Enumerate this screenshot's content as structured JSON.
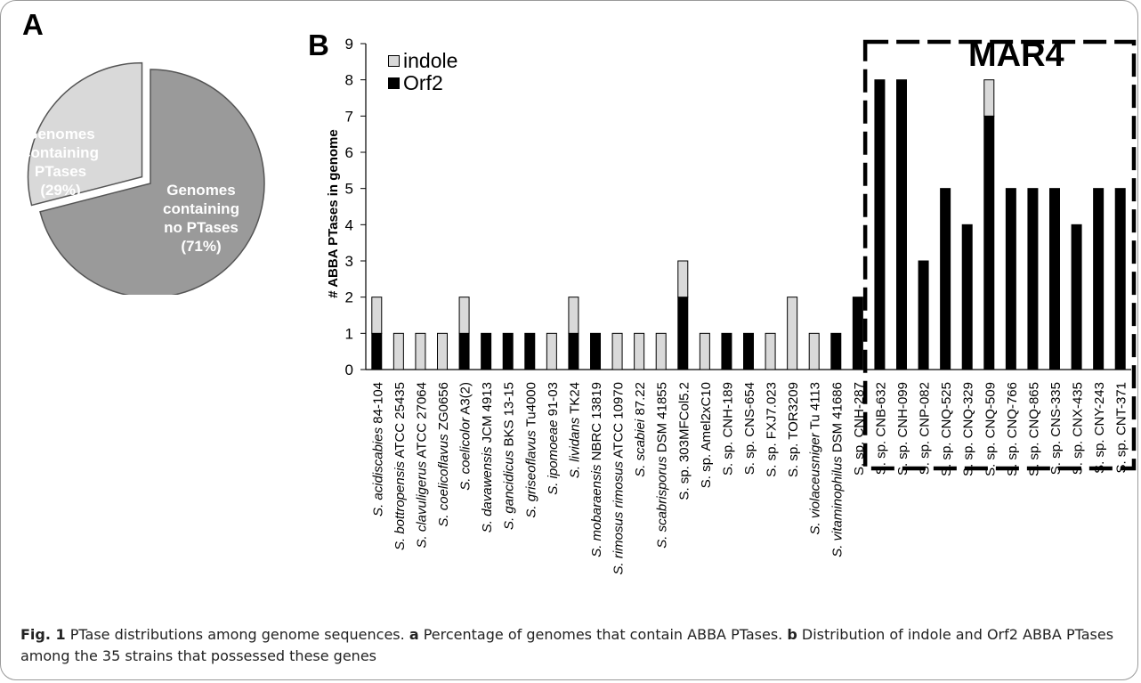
{
  "panel_a_label": "A",
  "panel_b_label": "B",
  "legend": {
    "indole": "indole",
    "orf2": "Orf2"
  },
  "group_label": "MAR4",
  "caption": {
    "fig": "Fig. 1",
    "title": "PTase distributions among genome sequences.",
    "a_letter": "a",
    "a_text": "Percentage of genomes that contain ABBA PTases.",
    "b_letter": "b",
    "b_text": "Distribution of indole and Orf2 ABBA PTases among the 35 strains that possessed these genes"
  },
  "colors": {
    "indole": "#d9d9d9",
    "orf2": "#000000",
    "pie_dark": "#9a9a9a",
    "pie_light": "#d9d9d9"
  },
  "chart_data": [
    {
      "type": "pie",
      "slices": [
        {
          "label_lines": [
            "Genomes",
            "containing",
            "PTases",
            "(29%)"
          ],
          "value": 29,
          "color": "#d9d9d9",
          "exploded": true
        },
        {
          "label_lines": [
            "Genomes",
            "containing",
            "no PTases",
            "(71%)"
          ],
          "value": 71,
          "color": "#9a9a9a",
          "exploded": false
        }
      ]
    },
    {
      "type": "bar",
      "stacked": true,
      "ylabel": "# ABBA PTases in genome",
      "ylim": [
        0,
        9
      ],
      "yticks": [
        0,
        1,
        2,
        3,
        4,
        5,
        6,
        7,
        8,
        9
      ],
      "categories": [
        {
          "i": "S. acidiscabies",
          "r": " 84-104"
        },
        {
          "i": "S. bottropensis",
          "r": " ATCC 25435"
        },
        {
          "i": "S. clavuligerus",
          "r": " ATCC 27064"
        },
        {
          "i": "S. coelicoflavus",
          "r": " ZG0656"
        },
        {
          "i": "S. coelicolor",
          "r": " A3(2)"
        },
        {
          "i": "S. davawensis",
          "r": " JCM 4913"
        },
        {
          "i": "S. gancidicus",
          "r": " BKS 13-15"
        },
        {
          "i": "S. griseoflavus",
          "r": " Tu4000"
        },
        {
          "i": "S. ipomoeae",
          "r": " 91-03"
        },
        {
          "i": "S. lividans",
          "r": " TK24"
        },
        {
          "i": "S. mobaraensis",
          "r": " NBRC 13819"
        },
        {
          "i": "S. rimosus rimosus",
          "r": " ATCC 10970"
        },
        {
          "i": "S. scabiei",
          "r": " 87.22"
        },
        {
          "i": "S. scabrisporus",
          "r": " DSM 41855"
        },
        {
          "i": "",
          "r": "S. sp. 303MFCol5.2"
        },
        {
          "i": "",
          "r": "S. sp. Amel2xC10"
        },
        {
          "i": "",
          "r": "S. sp. CNH-189"
        },
        {
          "i": "",
          "r": "S. sp. CNS-654"
        },
        {
          "i": "",
          "r": "S. sp. FXJ7.023"
        },
        {
          "i": "",
          "r": "S. sp. TOR3209"
        },
        {
          "i": "S. violaceusniger",
          "r": " Tu 4113"
        },
        {
          "i": "S. vitaminophilus",
          "r": " DSM 41686"
        },
        {
          "i": "",
          "r": "S. sp. CNH-287"
        },
        {
          "i": "",
          "r": "S. sp. CNB-632"
        },
        {
          "i": "",
          "r": "S. sp. CNH-099"
        },
        {
          "i": "",
          "r": "S. sp. CNP-082"
        },
        {
          "i": "",
          "r": "S. sp. CNQ-525"
        },
        {
          "i": "",
          "r": "S. sp. CNQ-329"
        },
        {
          "i": "",
          "r": "S. sp. CNQ-509"
        },
        {
          "i": "",
          "r": "S. sp. CNQ-766"
        },
        {
          "i": "",
          "r": "S. sp. CNQ-865"
        },
        {
          "i": "",
          "r": "S. sp. CNS-335"
        },
        {
          "i": "",
          "r": "S. sp. CNX-435"
        },
        {
          "i": "",
          "r": "S. sp. CNY-243"
        },
        {
          "i": "",
          "r": "S. sp. CNT-371"
        }
      ],
      "series": [
        {
          "name": "Orf2",
          "color": "#000000",
          "values": [
            1,
            0,
            0,
            0,
            1,
            1,
            1,
            1,
            0,
            1,
            1,
            0,
            0,
            0,
            2,
            0,
            1,
            1,
            0,
            0,
            0,
            1,
            2,
            8,
            8,
            3,
            5,
            4,
            7,
            5,
            5,
            5,
            4,
            5,
            5
          ]
        },
        {
          "name": "indole",
          "color": "#d9d9d9",
          "values": [
            1,
            1,
            1,
            1,
            1,
            0,
            0,
            0,
            1,
            1,
            0,
            1,
            1,
            1,
            1,
            1,
            0,
            0,
            1,
            2,
            1,
            0,
            0,
            0,
            0,
            0,
            0,
            0,
            1,
            0,
            0,
            0,
            0,
            0,
            0
          ]
        }
      ],
      "group": {
        "label": "MAR4",
        "from_index": 23,
        "to_index": 34
      },
      "legend_position": "top-left",
      "grid": false
    }
  ]
}
